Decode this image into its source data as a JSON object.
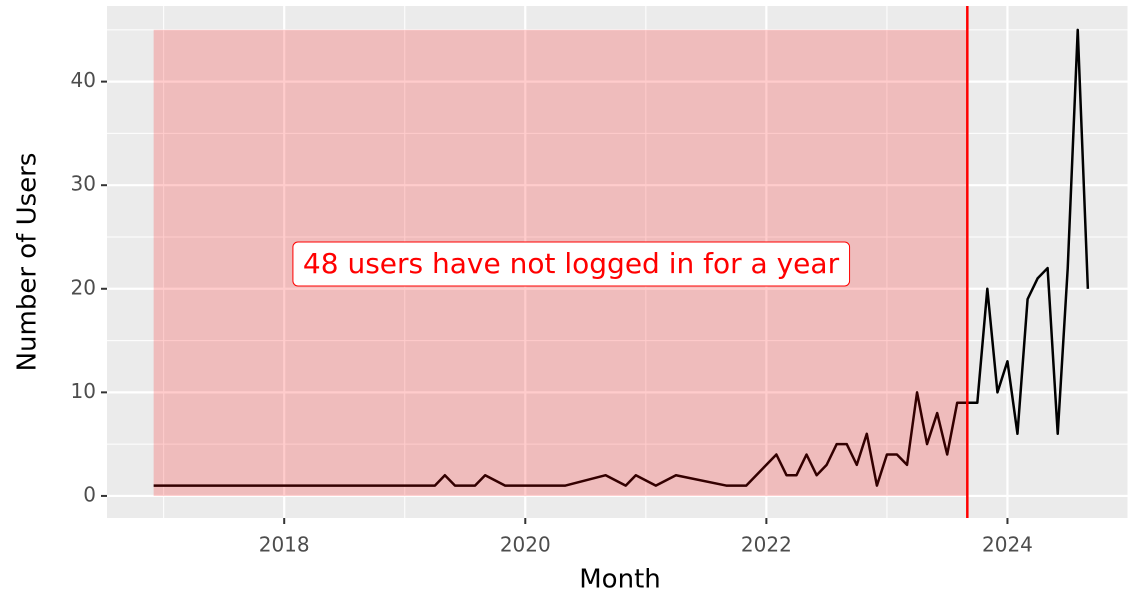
{
  "chart_data": {
    "type": "line",
    "x": [
      2016.917,
      2019.25,
      2019.333,
      2019.417,
      2019.583,
      2019.667,
      2019.833,
      2020.333,
      2020.667,
      2020.833,
      2020.917,
      2021.083,
      2021.25,
      2021.667,
      2021.833,
      2022.083,
      2022.167,
      2022.25,
      2022.333,
      2022.417,
      2022.5,
      2022.583,
      2022.667,
      2022.75,
      2022.833,
      2022.917,
      2023.0,
      2023.083,
      2023.167,
      2023.25,
      2023.333,
      2023.417,
      2023.5,
      2023.583,
      2023.667,
      2023.75,
      2023.833,
      2023.917,
      2024.0,
      2024.083,
      2024.167,
      2024.25,
      2024.333,
      2024.417,
      2024.5,
      2024.583,
      2024.667
    ],
    "values": [
      1,
      1,
      2,
      1,
      1,
      2,
      1,
      1,
      2,
      1,
      2,
      1,
      2,
      1,
      1,
      4,
      2,
      2,
      4,
      2,
      3,
      5,
      5,
      3,
      6,
      1,
      4,
      4,
      3,
      10,
      5,
      8,
      4,
      9,
      9,
      9,
      20,
      10,
      13,
      6,
      19,
      21,
      22,
      6,
      22,
      45,
      20
    ],
    "color": "#000000",
    "xlabel": "Month",
    "ylabel": "Number of Users",
    "xlim": [
      2016.53,
      2025.0
    ],
    "xticks": [
      2018,
      2020,
      2022,
      2024
    ],
    "ylim": [
      -2.13,
      47.3
    ],
    "yticks": [
      0,
      10,
      20,
      30,
      40
    ],
    "grid": true,
    "shade": {
      "x": [
        2016.917,
        2023.667
      ],
      "y": [
        0,
        45
      ],
      "color": "#ff0000"
    },
    "vline": {
      "x": 2023.667,
      "color": "#ff0000"
    },
    "annotation": "48 users have not logged in for a year"
  }
}
